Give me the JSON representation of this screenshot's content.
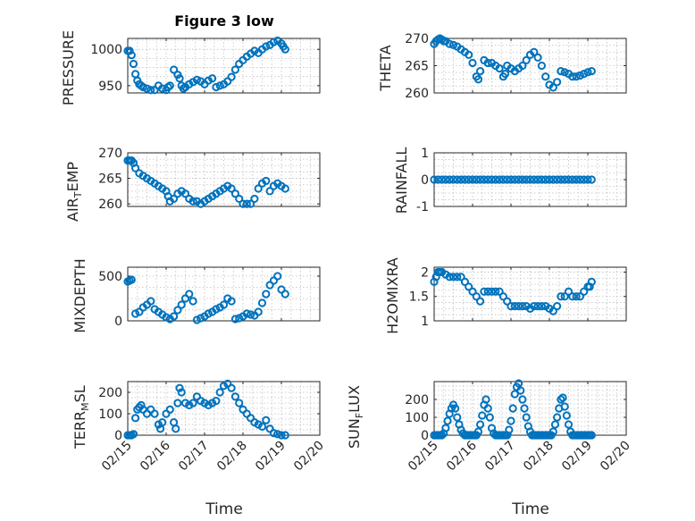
{
  "figure": {
    "title": "Figure 3 low",
    "xlabel": "Time",
    "x_ticks": [
      "02/15",
      "02/16",
      "02/17",
      "02/18",
      "02/19",
      "02/20"
    ],
    "marker_color": "#0072BD"
  },
  "chart_data": [
    {
      "type": "scatter",
      "name": "pressure",
      "ylabel": "PRESSURE",
      "xlim": [
        0,
        5
      ],
      "ylim": [
        940,
        1015
      ],
      "yticks": [
        950,
        1000
      ],
      "x": [
        0.0,
        0.05,
        0.1,
        0.15,
        0.2,
        0.25,
        0.3,
        0.35,
        0.4,
        0.5,
        0.6,
        0.7,
        0.8,
        0.9,
        1.0,
        1.05,
        1.1,
        1.2,
        1.3,
        1.35,
        1.4,
        1.45,
        1.5,
        1.6,
        1.7,
        1.8,
        1.9,
        2.0,
        2.1,
        2.2,
        2.3,
        2.4,
        2.5,
        2.6,
        2.7,
        2.8,
        2.9,
        3.0,
        3.1,
        3.2,
        3.3,
        3.4,
        3.5,
        3.6,
        3.7,
        3.8,
        3.9,
        4.0,
        4.05,
        4.1
      ],
      "y": [
        998,
        998,
        992,
        980,
        966,
        957,
        952,
        950,
        948,
        946,
        944,
        944,
        950,
        946,
        944,
        948,
        950,
        972,
        965,
        960,
        950,
        946,
        948,
        952,
        955,
        958,
        956,
        952,
        957,
        960,
        948,
        950,
        952,
        956,
        962,
        972,
        980,
        985,
        990,
        994,
        998,
        995,
        1000,
        1004,
        1006,
        1010,
        1012,
        1008,
        1004,
        1000
      ]
    },
    {
      "type": "scatter",
      "name": "theta",
      "ylabel": "THETA",
      "xlim": [
        0,
        5
      ],
      "ylim": [
        260,
        270
      ],
      "yticks": [
        260,
        265,
        270
      ],
      "x": [
        0.0,
        0.05,
        0.1,
        0.15,
        0.2,
        0.25,
        0.3,
        0.4,
        0.5,
        0.6,
        0.7,
        0.8,
        0.9,
        1.0,
        1.1,
        1.15,
        1.2,
        1.3,
        1.4,
        1.5,
        1.6,
        1.7,
        1.8,
        1.85,
        1.9,
        2.0,
        2.1,
        2.2,
        2.3,
        2.4,
        2.5,
        2.6,
        2.7,
        2.8,
        2.9,
        3.0,
        3.1,
        3.2,
        3.3,
        3.4,
        3.5,
        3.6,
        3.7,
        3.8,
        3.9,
        4.0,
        4.1
      ],
      "y": [
        269,
        269.5,
        269.8,
        270,
        269.8,
        269.5,
        269.5,
        269,
        268.8,
        268.5,
        268,
        267.5,
        267,
        265.5,
        263,
        262.5,
        264,
        266,
        265.5,
        265.5,
        265,
        264.5,
        263,
        263.5,
        265,
        264.5,
        264,
        264.5,
        265,
        266,
        267,
        267.5,
        266.5,
        265,
        263,
        261.5,
        261,
        262,
        264,
        263.8,
        263.5,
        263,
        263,
        263.2,
        263.5,
        263.8,
        264
      ]
    },
    {
      "type": "scatter",
      "name": "air_temp",
      "ylabel": "AIR_TEMP",
      "xlim": [
        0,
        5
      ],
      "ylim": [
        259.5,
        270
      ],
      "yticks": [
        260,
        265,
        270
      ],
      "x": [
        0.0,
        0.05,
        0.1,
        0.15,
        0.2,
        0.3,
        0.4,
        0.5,
        0.6,
        0.7,
        0.8,
        0.9,
        1.0,
        1.05,
        1.1,
        1.2,
        1.3,
        1.4,
        1.5,
        1.6,
        1.7,
        1.8,
        1.9,
        2.0,
        2.1,
        2.2,
        2.3,
        2.4,
        2.5,
        2.6,
        2.7,
        2.8,
        2.9,
        3.0,
        3.1,
        3.2,
        3.3,
        3.4,
        3.5,
        3.6,
        3.7,
        3.8,
        3.9,
        4.0,
        4.1
      ],
      "y": [
        268.5,
        268.5,
        268.5,
        268,
        267,
        266,
        265.5,
        265,
        264.5,
        264,
        263.5,
        263,
        262.5,
        261.5,
        260.5,
        261,
        262,
        262.5,
        262,
        261,
        260.5,
        260.5,
        260,
        260.5,
        261,
        261.5,
        262,
        262.5,
        263,
        263.5,
        263,
        262,
        261,
        260,
        260,
        260,
        261,
        263,
        264,
        264.5,
        262.5,
        263.5,
        264,
        263.5,
        263
      ]
    },
    {
      "type": "scatter",
      "name": "rainfall",
      "ylabel": "RAINFALL",
      "xlim": [
        0,
        5
      ],
      "ylim": [
        -1,
        1
      ],
      "yticks": [
        -1,
        0,
        1
      ],
      "x": [
        0.0,
        0.1,
        0.2,
        0.3,
        0.4,
        0.5,
        0.6,
        0.7,
        0.8,
        0.9,
        1.0,
        1.1,
        1.2,
        1.3,
        1.4,
        1.5,
        1.6,
        1.7,
        1.8,
        1.9,
        2.0,
        2.1,
        2.2,
        2.3,
        2.4,
        2.5,
        2.6,
        2.7,
        2.8,
        2.9,
        3.0,
        3.1,
        3.2,
        3.3,
        3.4,
        3.5,
        3.6,
        3.7,
        3.8,
        3.9,
        4.0,
        4.1
      ],
      "y": [
        0,
        0,
        0,
        0,
        0,
        0,
        0,
        0,
        0,
        0,
        0,
        0,
        0,
        0,
        0,
        0,
        0,
        0,
        0,
        0,
        0,
        0,
        0,
        0,
        0,
        0,
        0,
        0,
        0,
        0,
        0,
        0,
        0,
        0,
        0,
        0,
        0,
        0,
        0,
        0,
        0,
        0
      ]
    },
    {
      "type": "scatter",
      "name": "mixdepth",
      "ylabel": "MIXDEPTH",
      "xlim": [
        0,
        5
      ],
      "ylim": [
        0,
        600
      ],
      "yticks": [
        0,
        500
      ],
      "x": [
        0.0,
        0.05,
        0.1,
        0.2,
        0.3,
        0.4,
        0.5,
        0.6,
        0.7,
        0.8,
        0.9,
        1.0,
        1.1,
        1.2,
        1.3,
        1.4,
        1.5,
        1.6,
        1.7,
        1.8,
        1.9,
        2.0,
        2.1,
        2.2,
        2.3,
        2.4,
        2.5,
        2.6,
        2.7,
        2.8,
        2.9,
        3.0,
        3.1,
        3.2,
        3.3,
        3.4,
        3.5,
        3.6,
        3.7,
        3.8,
        3.9,
        4.0,
        4.1
      ],
      "y": [
        440,
        450,
        460,
        80,
        100,
        150,
        180,
        220,
        130,
        100,
        70,
        40,
        20,
        50,
        120,
        180,
        250,
        300,
        220,
        10,
        30,
        50,
        80,
        100,
        130,
        150,
        180,
        250,
        220,
        20,
        30,
        50,
        80,
        70,
        60,
        100,
        200,
        300,
        400,
        450,
        500,
        350,
        300
      ]
    },
    {
      "type": "scatter",
      "name": "h2omixra",
      "ylabel": "H2OMIXRA",
      "xlim": [
        0,
        5
      ],
      "ylim": [
        1,
        2.1
      ],
      "yticks": [
        1,
        1.5,
        2
      ],
      "x": [
        0.0,
        0.05,
        0.1,
        0.15,
        0.2,
        0.3,
        0.4,
        0.5,
        0.6,
        0.7,
        0.8,
        0.9,
        1.0,
        1.1,
        1.2,
        1.3,
        1.4,
        1.5,
        1.6,
        1.7,
        1.8,
        1.9,
        2.0,
        2.1,
        2.2,
        2.3,
        2.4,
        2.5,
        2.6,
        2.7,
        2.8,
        2.9,
        3.0,
        3.1,
        3.2,
        3.3,
        3.4,
        3.5,
        3.6,
        3.7,
        3.8,
        3.9,
        4.0,
        4.05,
        4.1
      ],
      "y": [
        1.8,
        1.9,
        2.0,
        2.0,
        2.0,
        1.95,
        1.9,
        1.9,
        1.9,
        1.9,
        1.8,
        1.7,
        1.6,
        1.5,
        1.4,
        1.6,
        1.6,
        1.6,
        1.6,
        1.6,
        1.5,
        1.4,
        1.3,
        1.3,
        1.3,
        1.3,
        1.3,
        1.25,
        1.3,
        1.3,
        1.3,
        1.3,
        1.25,
        1.2,
        1.3,
        1.5,
        1.5,
        1.6,
        1.5,
        1.5,
        1.5,
        1.6,
        1.7,
        1.7,
        1.8
      ]
    },
    {
      "type": "scatter",
      "name": "terr_msl",
      "ylabel": "TERR_MSL",
      "xlim": [
        0,
        5
      ],
      "ylim": [
        0,
        250
      ],
      "yticks": [
        0,
        100,
        200
      ],
      "x": [
        0.0,
        0.05,
        0.1,
        0.15,
        0.2,
        0.25,
        0.3,
        0.35,
        0.4,
        0.5,
        0.6,
        0.7,
        0.8,
        0.85,
        0.9,
        1.0,
        1.1,
        1.2,
        1.25,
        1.3,
        1.35,
        1.4,
        1.5,
        1.6,
        1.7,
        1.8,
        1.9,
        2.0,
        2.1,
        2.2,
        2.3,
        2.4,
        2.5,
        2.6,
        2.7,
        2.8,
        2.9,
        3.0,
        3.1,
        3.2,
        3.3,
        3.4,
        3.5,
        3.6,
        3.7,
        3.8,
        3.9,
        4.0,
        4.1
      ],
      "y": [
        0,
        0,
        0,
        5,
        80,
        120,
        130,
        140,
        120,
        100,
        120,
        100,
        50,
        30,
        60,
        100,
        120,
        60,
        30,
        150,
        220,
        200,
        150,
        140,
        150,
        180,
        160,
        150,
        140,
        150,
        160,
        200,
        230,
        240,
        220,
        180,
        150,
        120,
        100,
        80,
        60,
        50,
        40,
        70,
        30,
        10,
        5,
        0,
        0
      ]
    },
    {
      "type": "scatter",
      "name": "sun_flux",
      "ylabel": "SUN_FLUX",
      "xlim": [
        0,
        5
      ],
      "ylim": [
        0,
        300
      ],
      "yticks": [
        0,
        100,
        200
      ],
      "x": [
        0.0,
        0.05,
        0.1,
        0.15,
        0.2,
        0.25,
        0.3,
        0.35,
        0.4,
        0.45,
        0.5,
        0.55,
        0.6,
        0.65,
        0.7,
        0.75,
        0.8,
        0.85,
        0.9,
        0.95,
        1.0,
        1.05,
        1.1,
        1.15,
        1.2,
        1.25,
        1.3,
        1.35,
        1.4,
        1.45,
        1.5,
        1.55,
        1.6,
        1.65,
        1.7,
        1.75,
        1.8,
        1.85,
        1.9,
        1.95,
        2.0,
        2.05,
        2.1,
        2.15,
        2.2,
        2.25,
        2.3,
        2.35,
        2.4,
        2.45,
        2.5,
        2.55,
        2.6,
        2.65,
        2.7,
        2.75,
        2.8,
        2.85,
        2.9,
        2.95,
        3.0,
        3.05,
        3.1,
        3.15,
        3.2,
        3.25,
        3.3,
        3.35,
        3.4,
        3.45,
        3.5,
        3.55,
        3.6,
        3.65,
        3.7,
        3.75,
        3.8,
        3.85,
        3.9,
        3.95,
        4.0,
        4.05,
        4.1
      ],
      "y": [
        0,
        0,
        0,
        0,
        0,
        10,
        40,
        80,
        120,
        150,
        170,
        150,
        100,
        60,
        30,
        10,
        0,
        0,
        0,
        0,
        0,
        0,
        0,
        20,
        60,
        110,
        170,
        200,
        150,
        100,
        40,
        10,
        0,
        0,
        0,
        0,
        0,
        0,
        0,
        30,
        80,
        150,
        230,
        270,
        290,
        250,
        200,
        150,
        100,
        50,
        20,
        0,
        0,
        0,
        0,
        0,
        0,
        0,
        0,
        0,
        0,
        0,
        20,
        60,
        100,
        150,
        200,
        210,
        160,
        110,
        60,
        20,
        0,
        0,
        0,
        0,
        0,
        0,
        0,
        0,
        0,
        0,
        0
      ]
    }
  ]
}
